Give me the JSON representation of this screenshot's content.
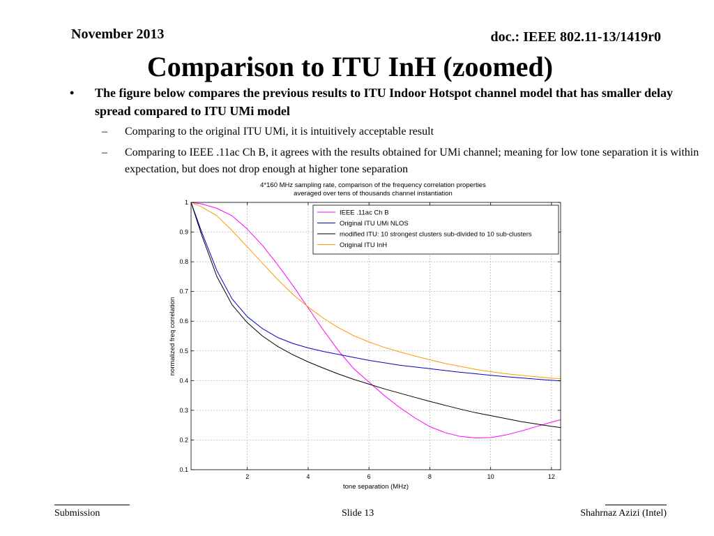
{
  "header": {
    "date": "November 2013",
    "doc": "doc.: IEEE 802.11-13/1419r0"
  },
  "title": "Comparison to ITU InH (zoomed)",
  "bullets": [
    {
      "text": "The figure below compares the previous results to ITU Indoor Hotspot channel model that has smaller delay spread compared to ITU UMi model",
      "sub": [
        "Comparing to the original ITU UMi, it is intuitively acceptable result",
        "Comparing to IEEE .11ac Ch B, it  agrees with the results obtained for UMi channel; meaning for low tone separation it is within expectation, but does not drop enough at higher tone separation"
      ]
    }
  ],
  "bullet_glyph": "•",
  "dash_glyph": "–",
  "chart_data": {
    "type": "line",
    "title": "4*160 MHz sampling rate, comparison of the frequency correlation properties",
    "subtitle": "averaged over tens of thousands channel instantiation",
    "xlabel": "tone separation (MHz)",
    "ylabel": "normalized freq correlation",
    "xlim": [
      0.15,
      12.3
    ],
    "ylim": [
      0.1,
      1
    ],
    "xticks": [
      2,
      4,
      6,
      8,
      10,
      12
    ],
    "yticks": [
      0.1,
      0.2,
      0.3,
      0.4,
      0.5,
      0.6,
      0.7,
      0.8,
      0.9,
      1
    ],
    "grid": true,
    "legend_position": "top-right",
    "series": [
      {
        "name": "IEEE .11ac Ch B",
        "color": "#ff00ff",
        "x": [
          0.15,
          0.5,
          1,
          1.5,
          2,
          2.5,
          3,
          3.5,
          4,
          4.5,
          5,
          5.5,
          6,
          6.5,
          7,
          7.5,
          8,
          8.5,
          9,
          9.5,
          10,
          10.5,
          11,
          11.5,
          12,
          12.3
        ],
        "y": [
          1.0,
          0.995,
          0.98,
          0.955,
          0.91,
          0.855,
          0.79,
          0.72,
          0.645,
          0.57,
          0.5,
          0.44,
          0.395,
          0.35,
          0.31,
          0.275,
          0.245,
          0.225,
          0.212,
          0.207,
          0.208,
          0.217,
          0.23,
          0.245,
          0.26,
          0.268
        ]
      },
      {
        "name": "Original ITU UMi NLOS",
        "color": "#0000cc",
        "x": [
          0.15,
          0.5,
          1,
          1.5,
          2,
          2.5,
          3,
          3.5,
          4,
          4.5,
          5,
          5.5,
          6,
          6.5,
          7,
          7.5,
          8,
          8.5,
          9,
          9.5,
          10,
          10.5,
          11,
          11.5,
          12,
          12.3
        ],
        "y": [
          1.0,
          0.9,
          0.77,
          0.675,
          0.615,
          0.575,
          0.545,
          0.525,
          0.51,
          0.498,
          0.488,
          0.478,
          0.468,
          0.46,
          0.452,
          0.446,
          0.44,
          0.434,
          0.428,
          0.423,
          0.418,
          0.413,
          0.409,
          0.405,
          0.401,
          0.399
        ]
      },
      {
        "name": "modified ITU: 10 strongest clusters sub-divided to 10 sub-clusters",
        "color": "#000000",
        "x": [
          0.15,
          0.5,
          1,
          1.5,
          2,
          2.5,
          3,
          3.5,
          4,
          4.5,
          5,
          5.5,
          6,
          6.5,
          7,
          7.5,
          8,
          8.5,
          9,
          9.5,
          10,
          10.5,
          11,
          11.5,
          12,
          12.3
        ],
        "y": [
          1.0,
          0.89,
          0.75,
          0.655,
          0.595,
          0.55,
          0.515,
          0.487,
          0.463,
          0.442,
          0.422,
          0.404,
          0.388,
          0.372,
          0.358,
          0.344,
          0.33,
          0.317,
          0.304,
          0.292,
          0.282,
          0.272,
          0.262,
          0.254,
          0.246,
          0.242
        ]
      },
      {
        "name": "Original ITU InH",
        "color": "#ff9900",
        "x": [
          0.15,
          0.5,
          1,
          1.5,
          2,
          2.5,
          3,
          3.5,
          4,
          4.5,
          5,
          5.5,
          6,
          6.5,
          7,
          7.5,
          8,
          8.5,
          9,
          9.5,
          10,
          10.5,
          11,
          11.5,
          12,
          12.3
        ],
        "y": [
          1.0,
          0.985,
          0.955,
          0.905,
          0.85,
          0.795,
          0.74,
          0.69,
          0.648,
          0.61,
          0.578,
          0.551,
          0.53,
          0.512,
          0.497,
          0.483,
          0.47,
          0.458,
          0.448,
          0.438,
          0.43,
          0.423,
          0.418,
          0.413,
          0.408,
          0.406
        ]
      }
    ]
  },
  "footer": {
    "left": "Submission",
    "center": "Slide 13",
    "right": "Shahrnaz Azizi (Intel)"
  }
}
